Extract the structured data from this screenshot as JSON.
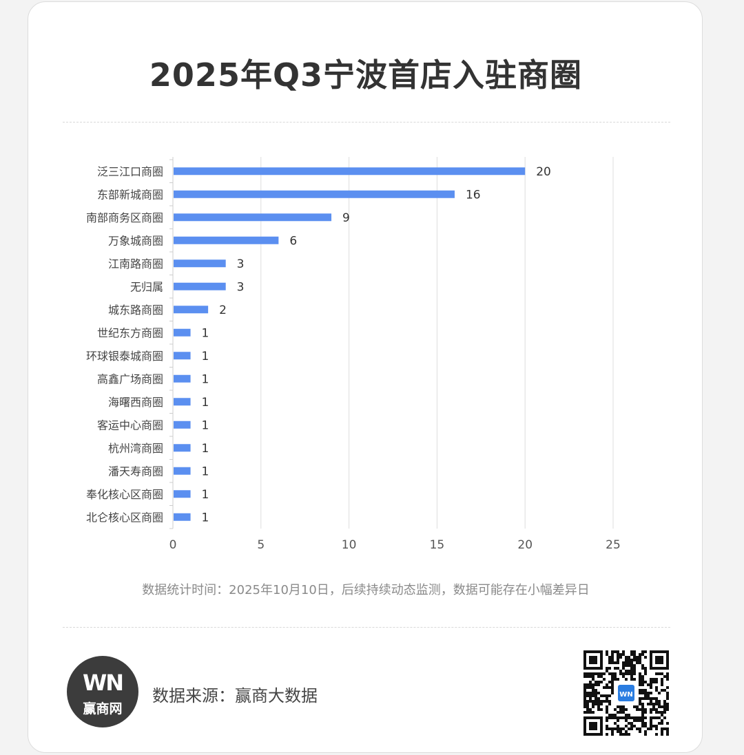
{
  "title": "2025年Q3宁波首店入驻商圈",
  "chart_data": {
    "type": "bar",
    "orientation": "horizontal",
    "categories": [
      "泛三江口商圈",
      "东部新城商圈",
      "南部商务区商圈",
      "万象城商圈",
      "江南路商圈",
      "无归属",
      "城东路商圈",
      "世纪东方商圈",
      "环球银泰城商圈",
      "高鑫广场商圈",
      "海曙西商圈",
      "客运中心商圈",
      "杭州湾商圈",
      "潘天寿商圈",
      "奉化核心区商圈",
      "北仑核心区商圈"
    ],
    "values": [
      20,
      16,
      9,
      6,
      3,
      3,
      2,
      1,
      1,
      1,
      1,
      1,
      1,
      1,
      1,
      1
    ],
    "xlim": [
      0,
      25
    ],
    "xticks": [
      0,
      5,
      10,
      15,
      20,
      25
    ],
    "bar_color": "#5b8ff0",
    "grid": true,
    "data_labels": true
  },
  "note": "数据统计时间：2025年10月10日，后续持续动态监测，数据可能存在小幅差异日",
  "footer": {
    "logo_mark": "WN",
    "logo_text": "赢商网",
    "source": "数据来源：赢商大数据",
    "qr_badge": "WN"
  }
}
